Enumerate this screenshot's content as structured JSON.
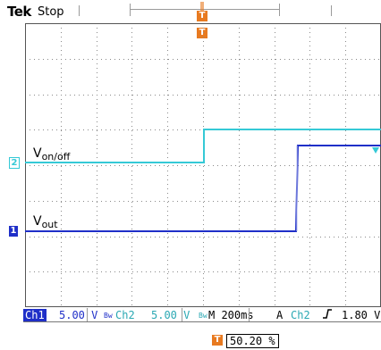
{
  "header": {
    "brand_bold": "Tek",
    "state": "Stop",
    "trigger_position_marker": "T"
  },
  "screen": {
    "trigger_marker_top": "T",
    "channels": [
      {
        "number": "2",
        "label_main": "V",
        "label_sub": "on/off",
        "color": "#35c9d6"
      },
      {
        "number": "1",
        "label_main": "V",
        "label_sub": "out",
        "color": "#1f2fc8"
      }
    ]
  },
  "status_bar": {
    "ch1_label": "Ch1",
    "ch1_scale": "5.00 V",
    "ch1_bw_icon": "Bw",
    "ch2_label": "Ch2",
    "ch2_scale": "5.00 V",
    "ch2_bw_icon": "Bw",
    "timebase": "M 200ms",
    "acq_mode": "A",
    "trigger_source": "Ch2",
    "trigger_slope_icon": "rising-edge",
    "trigger_level": "1.80 V"
  },
  "trigger_position": {
    "marker": "T",
    "value": "50.20 %"
  },
  "colors": {
    "ch1": "#1f2fc8",
    "ch2": "#35c9d6",
    "trigger": "#e87a20",
    "grid": "#8a8a8a"
  }
}
